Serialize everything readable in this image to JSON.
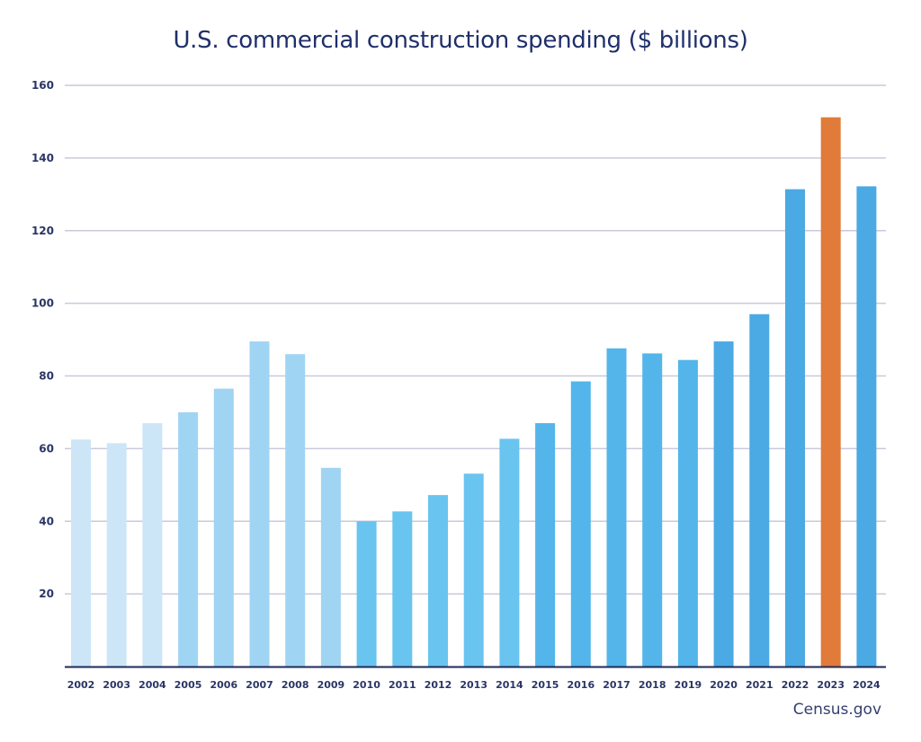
{
  "chart_data": {
    "type": "bar",
    "title": "U.S. commercial construction spending ($ billions)",
    "xlabel": "",
    "ylabel": "",
    "ylim": [
      0,
      160
    ],
    "yticks": [
      20,
      40,
      60,
      80,
      100,
      120,
      140,
      160
    ],
    "grid": true,
    "legend": "none",
    "categories": [
      "2002",
      "2003",
      "2004",
      "2005",
      "2006",
      "2007",
      "2008",
      "2009",
      "2010",
      "2011",
      "2012",
      "2013",
      "2014",
      "2015",
      "2016",
      "2017",
      "2018",
      "2019",
      "2020",
      "2021",
      "2022",
      "2023",
      "2024"
    ],
    "values": [
      62.5,
      61.5,
      67,
      70,
      76.5,
      89.5,
      86,
      54.7,
      40,
      42.7,
      47.2,
      53.1,
      62.7,
      67,
      78.5,
      87.6,
      86.2,
      84.4,
      89.5,
      97,
      131.4,
      151.2,
      132.2
    ],
    "colors": [
      "#cce6f8",
      "#cce6f8",
      "#cce6f8",
      "#a0d4f3",
      "#a0d4f3",
      "#a0d4f3",
      "#a0d4f3",
      "#a0d4f3",
      "#69c4ef",
      "#69c4ef",
      "#69c4ef",
      "#69c4ef",
      "#69c4ef",
      "#53b5ea",
      "#53b5ea",
      "#53b5ea",
      "#53b5ea",
      "#53b5ea",
      "#4ba9e4",
      "#4ba9e4",
      "#4ba9e4",
      "#e07b3a",
      "#4ba9e4"
    ],
    "highlight": {
      "category": "2023",
      "color": "#e07b3a"
    },
    "source": "Census.gov"
  },
  "colors": {
    "title": "#1f2f6b",
    "axis": "#1f2a55",
    "grid": "#c9c9dc",
    "tick_text": "#2a3566"
  }
}
